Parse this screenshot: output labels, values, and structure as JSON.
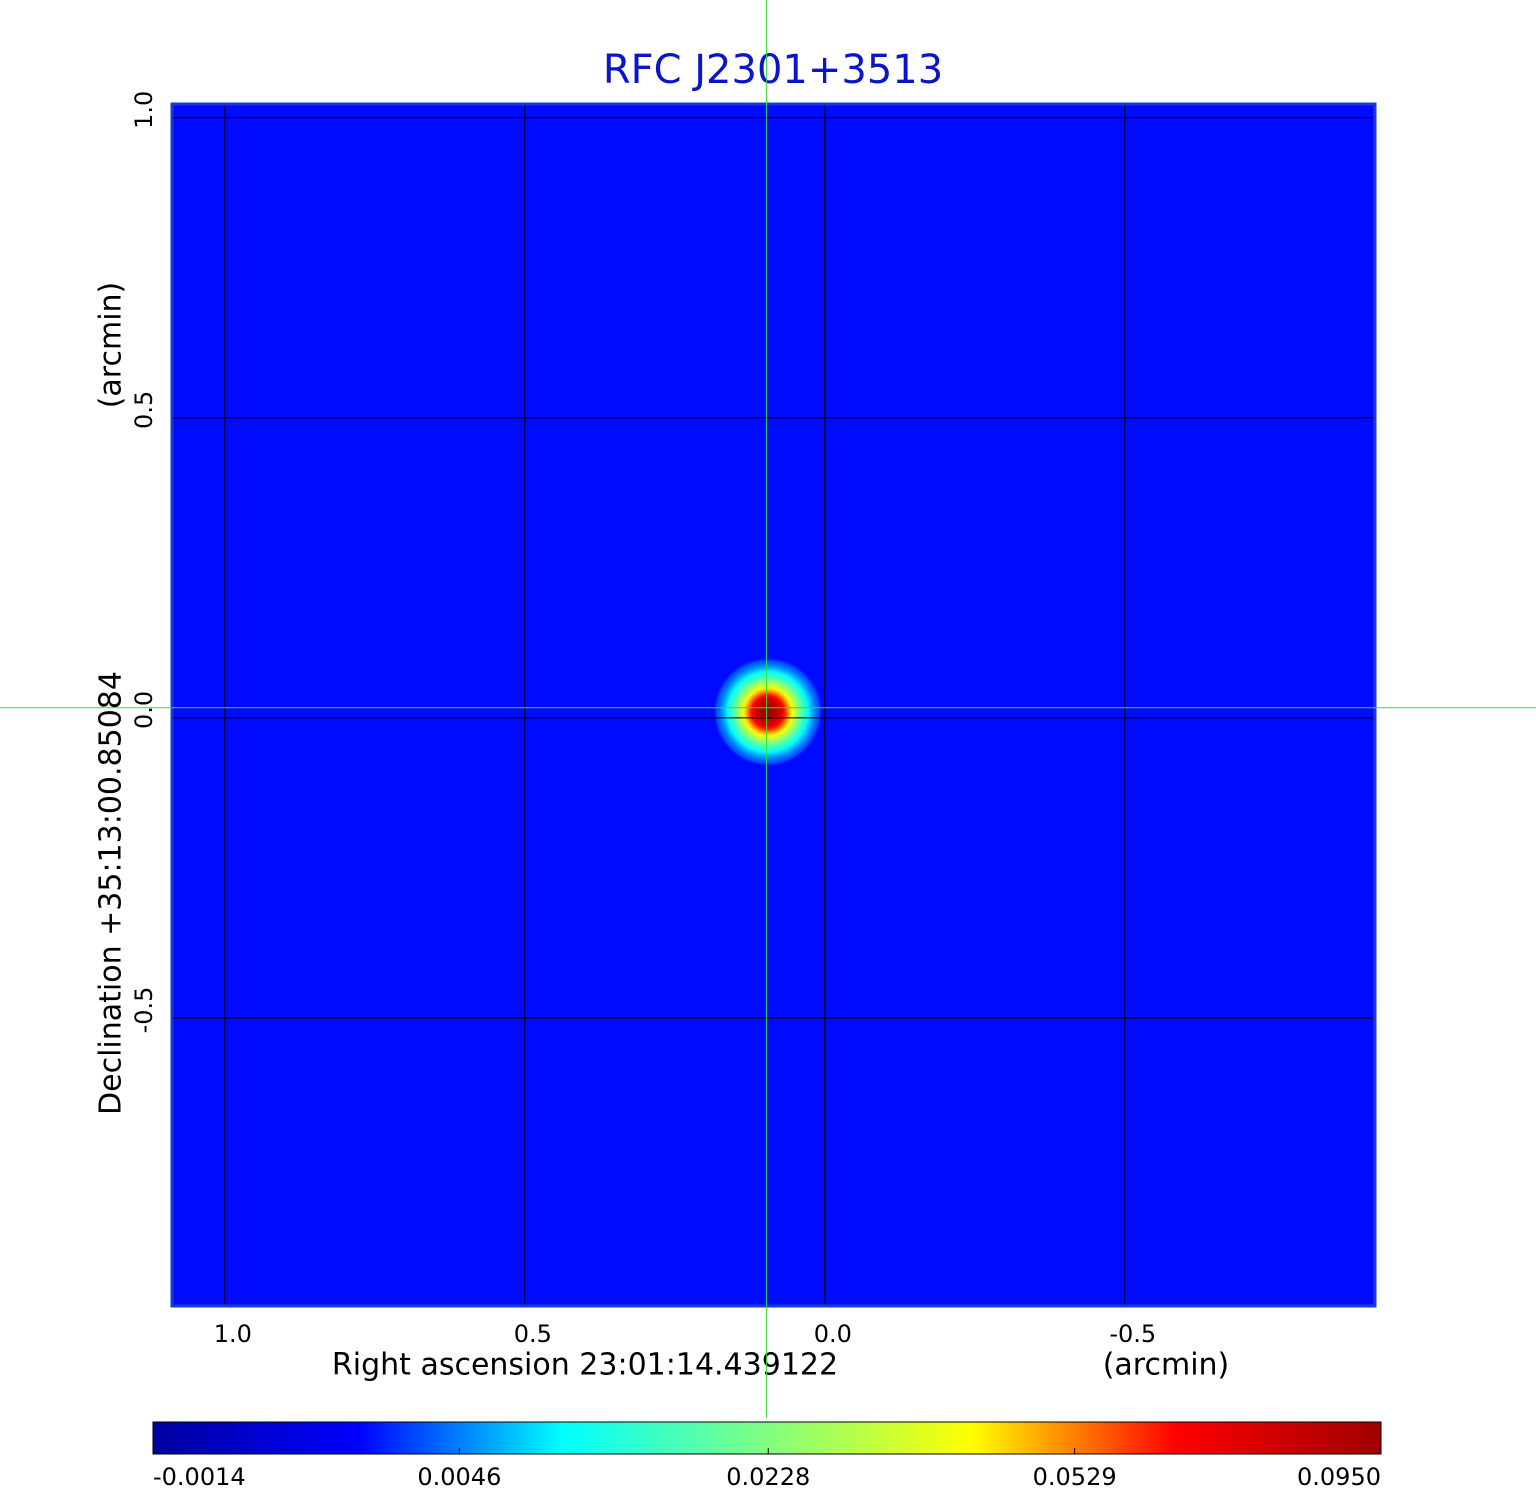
{
  "chart_data": {
    "type": "image",
    "title": "RFC J2301+3513",
    "x_label": "Right ascension  23:01:14.439122",
    "x_unit": "(arcmin)",
    "y_label": "Declination  +35:13:00.85084",
    "y_unit": "(arcmin)",
    "xlim": [
      1.088,
      -0.917
    ],
    "ylim": [
      -0.98,
      1.023
    ],
    "xticks": [
      {
        "value": 1,
        "label": "1.0"
      },
      0.5,
      {
        "value": 0,
        "label": "0.0"
      },
      -0.5
    ],
    "yticks": [
      {
        "value": 1,
        "label": "1.0"
      },
      0.5,
      {
        "value": 0,
        "label": "0.0"
      },
      -0.5
    ],
    "grid": true,
    "background_value": 0.0015,
    "sources": [
      {
        "x": 0.095,
        "y": 0.01,
        "peak": 0.095,
        "sigma": 0.03
      }
    ],
    "crosshair": {
      "x": 0.097,
      "y": 0.017,
      "color": "#33dd33"
    },
    "colorbar": {
      "clim": [
        -0.0014,
        0.095
      ],
      "scale": "sqrt",
      "colormap": [
        "#0000a0",
        "#0000ff",
        "#00ffff",
        "#80ff80",
        "#ffff00",
        "#ff0000",
        "#a00000"
      ],
      "ticks": [
        {
          "value": -0.0014,
          "label": "-0.0014"
        },
        0.0046,
        0.0228,
        0.0529,
        {
          "value": 0.095,
          "label": "0.0950"
        }
      ]
    }
  }
}
